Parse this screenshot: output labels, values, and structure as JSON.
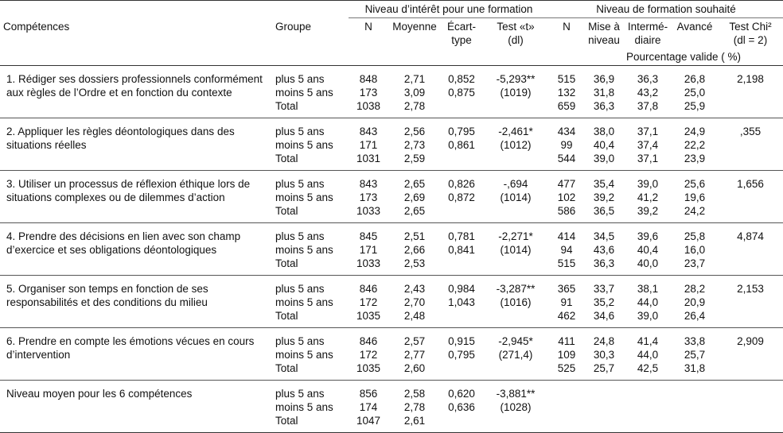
{
  "headers": {
    "section_interest": "Niveau d’intérêt pour une formation",
    "section_training": "Niveau de formation souhaité",
    "competences": "Compétences",
    "groupe": "Groupe",
    "n": "N",
    "moyenne": "Moyenne",
    "ecart_line1": "Écart-",
    "ecart_line2": "type",
    "test_t_line1": "Test «t»",
    "test_t_line2": "(dl)",
    "n2": "N",
    "mise_line1": "Mise à",
    "mise_line2": "niveau",
    "inter_line1": "Intermé-",
    "inter_line2": "diaire",
    "avance": "Avancé",
    "chi_line1": "Test Chi²",
    "chi_line2": "(dl = 2)",
    "pourcentage": "Pourcentage valide ( %)"
  },
  "rows": [
    {
      "competence": "1. Rédiger ses dossiers professionnels conformément aux règles de l’Ordre et en fonction du contexte",
      "groupes": [
        "plus 5 ans",
        "moins 5 ans",
        "Total"
      ],
      "n": [
        "848",
        "173",
        "1038"
      ],
      "moyenne": [
        "2,71",
        "3,09",
        "2,78"
      ],
      "ecart": [
        "0,852",
        "0,875",
        ""
      ],
      "test_t": [
        "-5,293**",
        "(1019)",
        ""
      ],
      "n2": [
        "515",
        "132",
        "659"
      ],
      "mise": [
        "36,9",
        "31,8",
        "36,3"
      ],
      "inter": [
        "36,3",
        "43,2",
        "37,8"
      ],
      "avance": [
        "26,8",
        "25,0",
        "25,9"
      ],
      "chi": "2,198"
    },
    {
      "competence": "2. Appliquer les règles déontologiques dans des situations réelles",
      "groupes": [
        "plus 5 ans",
        "moins 5 ans",
        "Total"
      ],
      "n": [
        "843",
        "171",
        "1031"
      ],
      "moyenne": [
        "2,56",
        "2,73",
        "2,59"
      ],
      "ecart": [
        "0,795",
        "0,861",
        ""
      ],
      "test_t": [
        "-2,461*",
        "(1012)",
        ""
      ],
      "n2": [
        "434",
        "99",
        "544"
      ],
      "mise": [
        "38,0",
        "40,4",
        "39,0"
      ],
      "inter": [
        "37,1",
        "37,4",
        "37,1"
      ],
      "avance": [
        "24,9",
        "22,2",
        "23,9"
      ],
      "chi": ",355"
    },
    {
      "competence": "3. Utiliser un processus de réflexion éthique lors de situations complexes ou de dilemmes d’action",
      "groupes": [
        "plus 5 ans",
        "moins 5 ans",
        "Total"
      ],
      "n": [
        "843",
        "173",
        "1033"
      ],
      "moyenne": [
        "2,65",
        "2,69",
        "2,65"
      ],
      "ecart": [
        "0,826",
        "0,872",
        ""
      ],
      "test_t": [
        "-,694",
        "(1014)",
        ""
      ],
      "n2": [
        "477",
        "102",
        "586"
      ],
      "mise": [
        "35,4",
        "39,2",
        "36,5"
      ],
      "inter": [
        "39,0",
        "41,2",
        "39,2"
      ],
      "avance": [
        "25,6",
        "19,6",
        "24,2"
      ],
      "chi": "1,656"
    },
    {
      "competence": "4. Prendre des décisions en lien avec son champ d’exercice et ses obligations déontologiques",
      "groupes": [
        "plus 5 ans",
        "moins 5 ans",
        "Total"
      ],
      "n": [
        "845",
        "171",
        "1033"
      ],
      "moyenne": [
        "2,51",
        "2,66",
        "2,53"
      ],
      "ecart": [
        "0,781",
        "0,841",
        ""
      ],
      "test_t": [
        "-2,271*",
        "(1014)",
        ""
      ],
      "n2": [
        "414",
        "94",
        "515"
      ],
      "mise": [
        "34,5",
        "43,6",
        "36,3"
      ],
      "inter": [
        "39,6",
        "40,4",
        "40,0"
      ],
      "avance": [
        "25,8",
        "16,0",
        "23,7"
      ],
      "chi": "4,874"
    },
    {
      "competence": "5. Organiser son temps en fonction de ses responsabilités et des conditions du milieu",
      "groupes": [
        "plus 5 ans",
        "moins 5 ans",
        "Total"
      ],
      "n": [
        "846",
        "172",
        "1035"
      ],
      "moyenne": [
        "2,43",
        "2,70",
        "2,48"
      ],
      "ecart": [
        "0,984",
        "1,043",
        ""
      ],
      "test_t": [
        "-3,287**",
        "(1016)",
        ""
      ],
      "n2": [
        "365",
        "91",
        "462"
      ],
      "mise": [
        "33,7",
        "35,2",
        "34,6"
      ],
      "inter": [
        "38,1",
        "44,0",
        "39,0"
      ],
      "avance": [
        "28,2",
        "20,9",
        "26,4"
      ],
      "chi": "2,153"
    },
    {
      "competence": "6. Prendre en compte les émotions vécues en cours d’intervention",
      "groupes": [
        "plus 5 ans",
        "moins 5 ans",
        "Total"
      ],
      "n": [
        "846",
        "172",
        "1035"
      ],
      "moyenne": [
        "2,57",
        "2,77",
        "2,60"
      ],
      "ecart": [
        "0,915",
        "0,795",
        ""
      ],
      "test_t": [
        "-2,945*",
        "(271,4)",
        ""
      ],
      "n2": [
        "411",
        "109",
        "525"
      ],
      "mise": [
        "24,8",
        "30,3",
        "25,7"
      ],
      "inter": [
        "41,4",
        "44,0",
        "42,5"
      ],
      "avance": [
        "33,8",
        "25,7",
        "31,8"
      ],
      "chi": "2,909"
    },
    {
      "competence": "Niveau moyen pour les 6 compétences",
      "groupes": [
        "plus 5 ans",
        "moins 5 ans",
        "Total"
      ],
      "n": [
        "856",
        "174",
        "1047"
      ],
      "moyenne": [
        "2,58",
        "2,78",
        "2,61"
      ],
      "ecart": [
        "0,620",
        "0,636",
        ""
      ],
      "test_t": [
        "-3,881**",
        "(1028)",
        ""
      ],
      "n2": [
        "",
        "",
        ""
      ],
      "mise": [
        "",
        "",
        ""
      ],
      "inter": [
        "",
        "",
        ""
      ],
      "avance": [
        "",
        "",
        ""
      ],
      "chi": ""
    }
  ]
}
